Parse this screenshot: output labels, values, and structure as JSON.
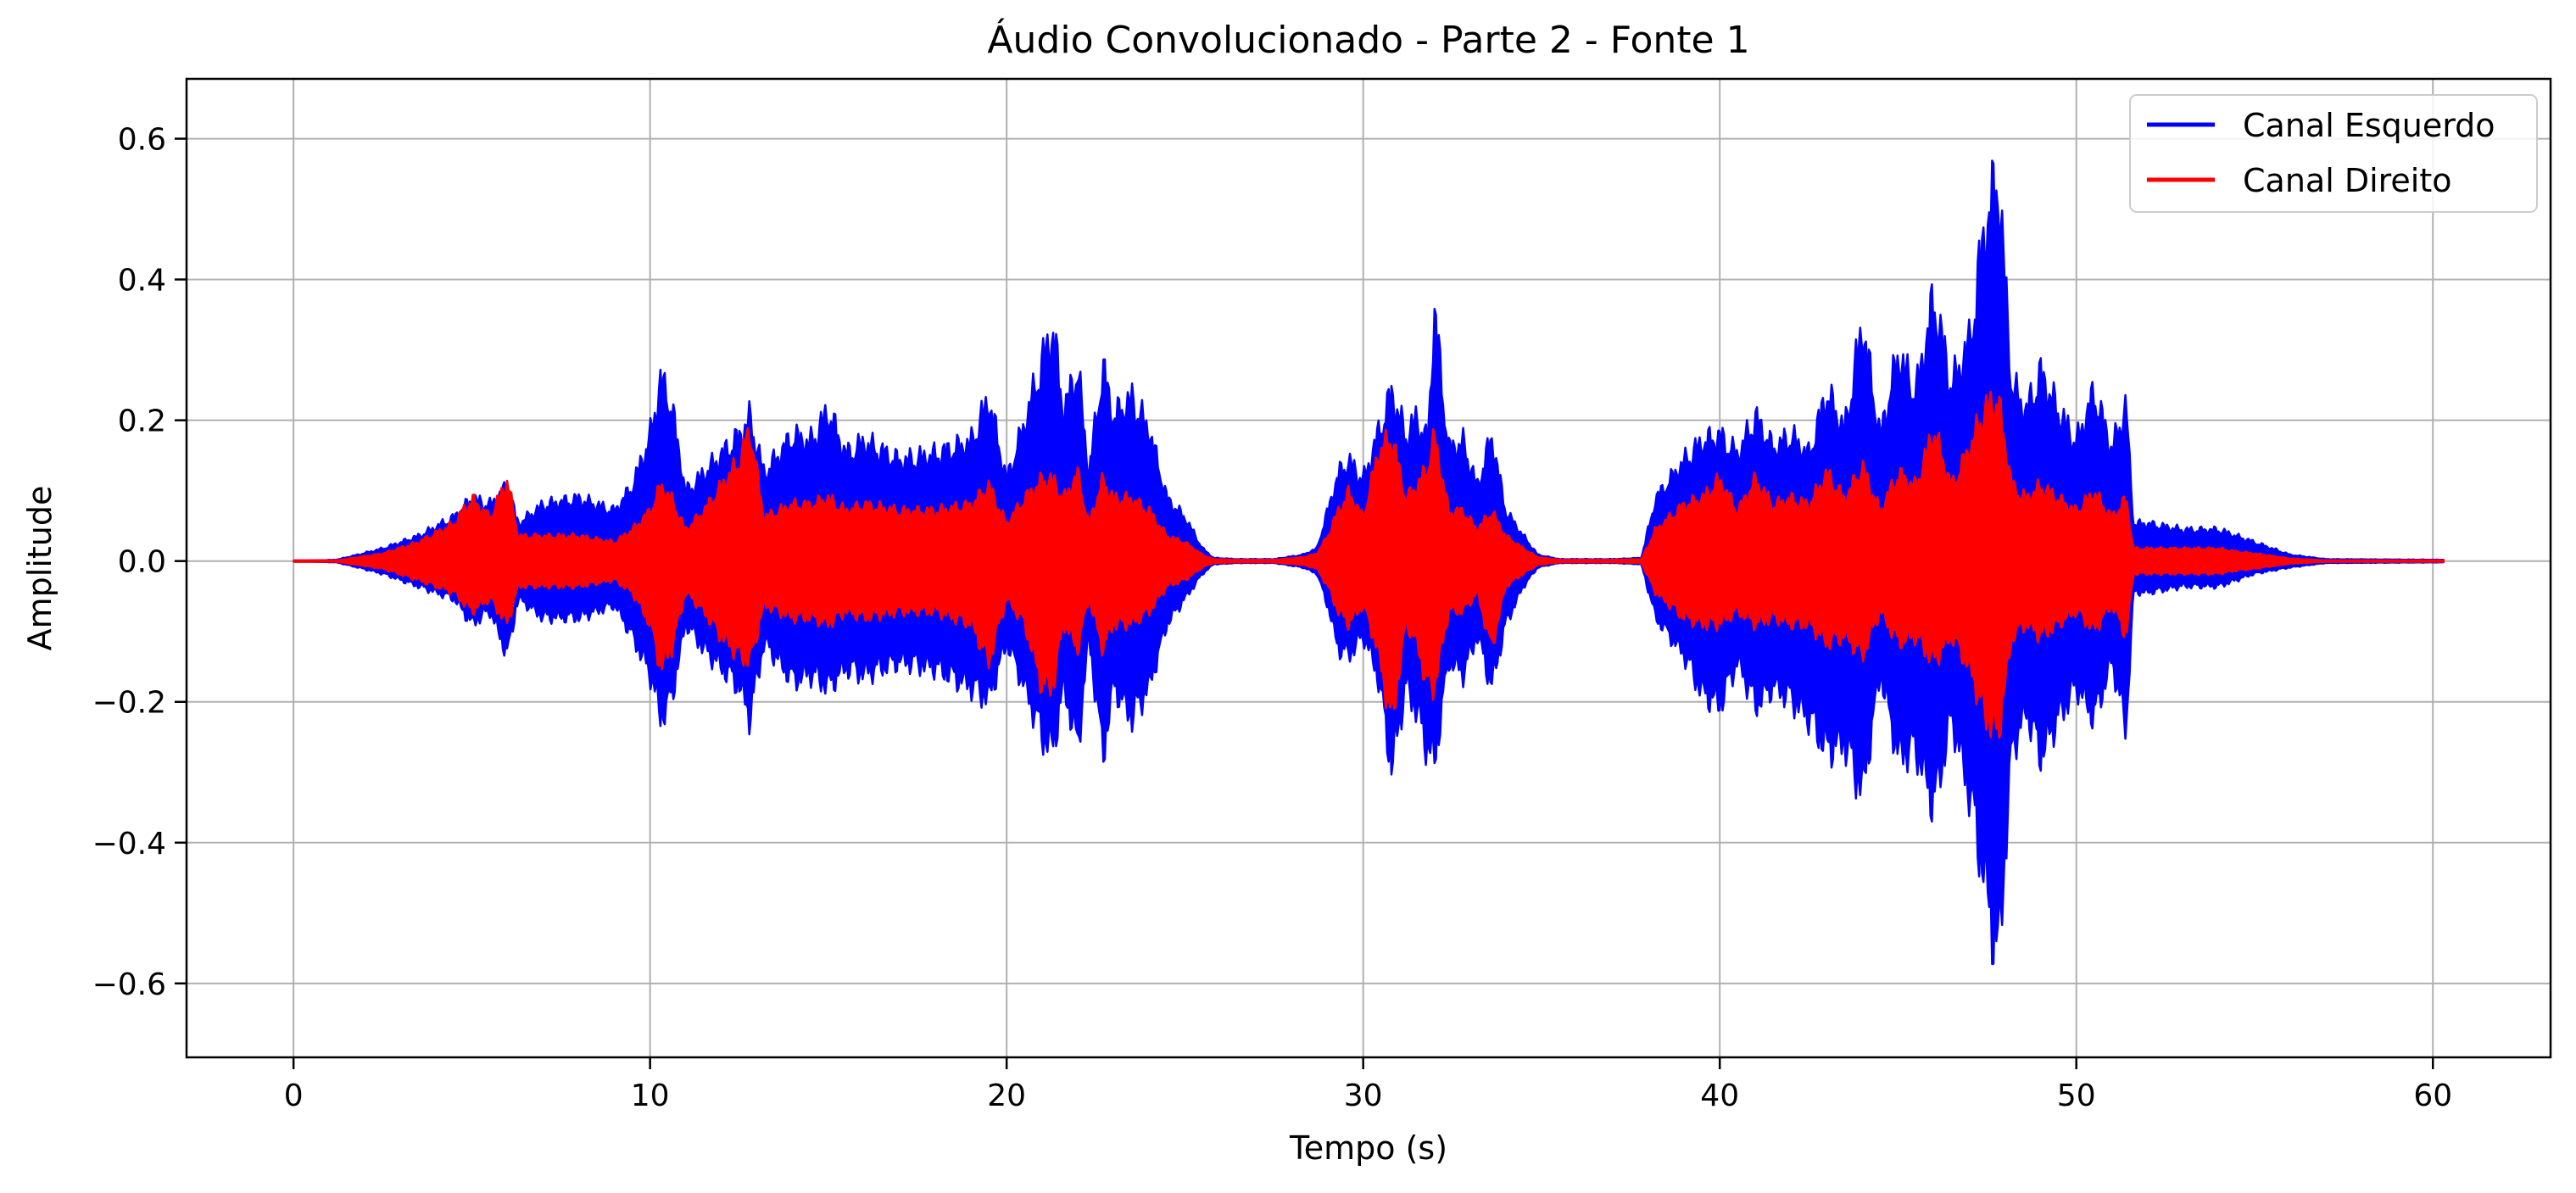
{
  "chart_data": {
    "type": "line",
    "title": "Áudio Convolucionado - Parte 2 - Fonte 1",
    "xlabel": "Tempo (s)",
    "ylabel": "Amplitude",
    "xlim": [
      -3.0,
      63.3
    ],
    "ylim": [
      -0.705,
      0.685
    ],
    "xticks": [
      0,
      10,
      20,
      30,
      40,
      50,
      60
    ],
    "yticks": [
      0.6,
      0.4,
      0.2,
      0.0,
      -0.2,
      -0.4,
      -0.6
    ],
    "ytick_labels": [
      "0.6",
      "0.4",
      "0.2",
      "0.0",
      "−0.2",
      "−0.4",
      "−0.6"
    ],
    "grid": true,
    "legend_position": "top-right",
    "series": [
      {
        "name": "Canal Esquerdo",
        "color": "#0000ff",
        "envelope": {
          "t": [
            0,
            1.2,
            1.8,
            2.5,
            3.5,
            4.5,
            5.0,
            5.5,
            6.0,
            6.3,
            7.0,
            8.0,
            9.0,
            9.5,
            10.0,
            10.3,
            10.6,
            11.0,
            11.5,
            12.0,
            12.5,
            12.8,
            13.2,
            14.0,
            14.5,
            15.0,
            15.5,
            16.0,
            17.0,
            18.0,
            19.0,
            19.5,
            20.0,
            20.5,
            21.0,
            21.3,
            21.6,
            22.0,
            22.3,
            22.7,
            23.0,
            23.5,
            24.0,
            24.5,
            25.0,
            25.5,
            25.8,
            26.5,
            27.5,
            28.3,
            28.7,
            29.0,
            29.3,
            29.6,
            30.0,
            30.4,
            30.8,
            31.2,
            31.5,
            31.8,
            32.0,
            32.4,
            32.8,
            33.2,
            33.6,
            34.0,
            34.5,
            34.9,
            35.5,
            37.0,
            37.8,
            38.2,
            39.0,
            39.5,
            40.0,
            40.5,
            41.0,
            41.5,
            42.0,
            42.5,
            43.0,
            43.5,
            44.0,
            44.5,
            45.0,
            45.5,
            46.0,
            46.5,
            47.0,
            47.4,
            47.8,
            48.2,
            48.6,
            49.0,
            49.5,
            50.0,
            50.5,
            51.0,
            51.4,
            51.6,
            52.0,
            53.0,
            54.0,
            54.5,
            55.0,
            55.5,
            56.0,
            57.0,
            60.3
          ],
          "upper": [
            0,
            0.002,
            0.01,
            0.02,
            0.04,
            0.07,
            0.1,
            0.09,
            0.12,
            0.06,
            0.09,
            0.1,
            0.08,
            0.12,
            0.2,
            0.29,
            0.25,
            0.11,
            0.14,
            0.17,
            0.2,
            0.23,
            0.14,
            0.2,
            0.19,
            0.24,
            0.17,
            0.19,
            0.16,
            0.17,
            0.19,
            0.26,
            0.13,
            0.22,
            0.32,
            0.37,
            0.24,
            0.31,
            0.14,
            0.31,
            0.23,
            0.26,
            0.21,
            0.1,
            0.07,
            0.02,
            0.005,
            0.003,
            0.003,
            0.01,
            0.02,
            0.08,
            0.14,
            0.16,
            0.13,
            0.2,
            0.27,
            0.2,
            0.23,
            0.19,
            0.4,
            0.18,
            0.19,
            0.12,
            0.2,
            0.08,
            0.04,
            0.01,
            0.003,
            0.003,
            0.005,
            0.1,
            0.16,
            0.19,
            0.2,
            0.17,
            0.23,
            0.18,
            0.2,
            0.17,
            0.27,
            0.21,
            0.38,
            0.2,
            0.33,
            0.27,
            0.42,
            0.28,
            0.35,
            0.52,
            0.62,
            0.28,
            0.24,
            0.3,
            0.24,
            0.19,
            0.27,
            0.18,
            0.25,
            0.06,
            0.06,
            0.05,
            0.05,
            0.04,
            0.03,
            0.02,
            0.01,
            0.003,
            0.002
          ],
          "lower": [
            0,
            -0.002,
            -0.01,
            -0.02,
            -0.04,
            -0.06,
            -0.1,
            -0.08,
            -0.15,
            -0.06,
            -0.09,
            -0.09,
            -0.07,
            -0.12,
            -0.18,
            -0.25,
            -0.22,
            -0.1,
            -0.14,
            -0.17,
            -0.2,
            -0.25,
            -0.13,
            -0.19,
            -0.18,
            -0.2,
            -0.17,
            -0.18,
            -0.16,
            -0.17,
            -0.2,
            -0.22,
            -0.13,
            -0.2,
            -0.28,
            -0.3,
            -0.2,
            -0.3,
            -0.12,
            -0.31,
            -0.2,
            -0.25,
            -0.2,
            -0.1,
            -0.06,
            -0.02,
            -0.005,
            -0.003,
            -0.003,
            -0.01,
            -0.02,
            -0.07,
            -0.14,
            -0.15,
            -0.12,
            -0.18,
            -0.33,
            -0.2,
            -0.24,
            -0.3,
            -0.32,
            -0.16,
            -0.18,
            -0.12,
            -0.2,
            -0.1,
            -0.04,
            -0.01,
            -0.003,
            -0.003,
            -0.005,
            -0.09,
            -0.15,
            -0.21,
            -0.23,
            -0.16,
            -0.23,
            -0.2,
            -0.22,
            -0.25,
            -0.3,
            -0.29,
            -0.37,
            -0.18,
            -0.31,
            -0.3,
            -0.39,
            -0.25,
            -0.37,
            -0.5,
            -0.64,
            -0.3,
            -0.24,
            -0.31,
            -0.25,
            -0.2,
            -0.25,
            -0.16,
            -0.27,
            -0.05,
            -0.05,
            -0.04,
            -0.04,
            -0.03,
            -0.02,
            -0.015,
            -0.01,
            -0.003,
            -0.002
          ]
        }
      },
      {
        "name": "Canal Direito",
        "color": "#ff0000",
        "envelope": {
          "t": [
            0,
            1.2,
            1.8,
            2.5,
            3.5,
            4.5,
            5.0,
            5.5,
            6.0,
            6.3,
            7.0,
            8.0,
            9.0,
            9.5,
            10.0,
            10.3,
            10.6,
            11.0,
            11.5,
            12.0,
            12.5,
            12.8,
            13.2,
            14.0,
            14.5,
            15.0,
            15.5,
            16.0,
            17.0,
            18.0,
            19.0,
            19.5,
            20.0,
            20.5,
            21.0,
            21.3,
            21.6,
            22.0,
            22.3,
            22.7,
            23.0,
            23.5,
            24.0,
            24.5,
            25.0,
            25.5,
            25.8,
            26.5,
            27.5,
            28.3,
            28.7,
            29.0,
            29.3,
            29.6,
            30.0,
            30.4,
            30.8,
            31.2,
            31.5,
            31.8,
            32.0,
            32.4,
            32.8,
            33.2,
            33.6,
            34.0,
            34.5,
            34.9,
            35.5,
            37.0,
            37.8,
            38.2,
            39.0,
            39.5,
            40.0,
            40.5,
            41.0,
            41.5,
            42.0,
            42.5,
            43.0,
            43.5,
            44.0,
            44.5,
            45.0,
            45.5,
            46.0,
            46.5,
            47.0,
            47.4,
            47.8,
            48.2,
            48.6,
            49.0,
            49.5,
            50.0,
            50.5,
            51.0,
            51.4,
            51.6,
            52.0,
            53.0,
            54.0,
            54.5,
            55.0,
            55.5,
            56.0,
            57.0,
            60.3
          ],
          "upper": [
            0,
            0.001,
            0.006,
            0.012,
            0.03,
            0.06,
            0.1,
            0.07,
            0.13,
            0.04,
            0.04,
            0.04,
            0.03,
            0.05,
            0.08,
            0.12,
            0.1,
            0.05,
            0.08,
            0.12,
            0.16,
            0.21,
            0.07,
            0.09,
            0.09,
            0.1,
            0.08,
            0.09,
            0.08,
            0.08,
            0.09,
            0.12,
            0.06,
            0.1,
            0.13,
            0.13,
            0.1,
            0.14,
            0.06,
            0.13,
            0.1,
            0.1,
            0.08,
            0.04,
            0.03,
            0.01,
            0.003,
            0.002,
            0.002,
            0.006,
            0.012,
            0.04,
            0.08,
            0.11,
            0.07,
            0.17,
            0.2,
            0.1,
            0.12,
            0.15,
            0.2,
            0.08,
            0.08,
            0.05,
            0.08,
            0.04,
            0.02,
            0.006,
            0.002,
            0.002,
            0.003,
            0.05,
            0.09,
            0.1,
            0.13,
            0.08,
            0.13,
            0.09,
            0.1,
            0.09,
            0.14,
            0.1,
            0.15,
            0.08,
            0.14,
            0.12,
            0.21,
            0.12,
            0.18,
            0.24,
            0.26,
            0.12,
            0.1,
            0.12,
            0.1,
            0.08,
            0.11,
            0.07,
            0.1,
            0.02,
            0.02,
            0.02,
            0.02,
            0.015,
            0.012,
            0.008,
            0.004,
            0.001,
            0.001
          ],
          "lower": [
            0,
            -0.001,
            -0.006,
            -0.012,
            -0.03,
            -0.05,
            -0.08,
            -0.06,
            -0.1,
            -0.04,
            -0.04,
            -0.04,
            -0.03,
            -0.05,
            -0.1,
            -0.17,
            -0.14,
            -0.05,
            -0.08,
            -0.12,
            -0.15,
            -0.16,
            -0.07,
            -0.09,
            -0.09,
            -0.1,
            -0.08,
            -0.09,
            -0.08,
            -0.08,
            -0.1,
            -0.16,
            -0.06,
            -0.1,
            -0.2,
            -0.2,
            -0.1,
            -0.14,
            -0.06,
            -0.14,
            -0.1,
            -0.1,
            -0.08,
            -0.04,
            -0.03,
            -0.01,
            -0.003,
            -0.002,
            -0.002,
            -0.006,
            -0.012,
            -0.04,
            -0.08,
            -0.1,
            -0.07,
            -0.14,
            -0.26,
            -0.1,
            -0.13,
            -0.2,
            -0.2,
            -0.08,
            -0.08,
            -0.05,
            -0.14,
            -0.04,
            -0.02,
            -0.006,
            -0.002,
            -0.002,
            -0.003,
            -0.05,
            -0.09,
            -0.1,
            -0.1,
            -0.08,
            -0.1,
            -0.09,
            -0.1,
            -0.1,
            -0.13,
            -0.12,
            -0.15,
            -0.08,
            -0.13,
            -0.12,
            -0.16,
            -0.12,
            -0.17,
            -0.24,
            -0.28,
            -0.12,
            -0.1,
            -0.12,
            -0.1,
            -0.08,
            -0.11,
            -0.07,
            -0.12,
            -0.02,
            -0.02,
            -0.02,
            -0.02,
            -0.015,
            -0.012,
            -0.008,
            -0.004,
            -0.001,
            -0.001
          ]
        }
      }
    ]
  }
}
